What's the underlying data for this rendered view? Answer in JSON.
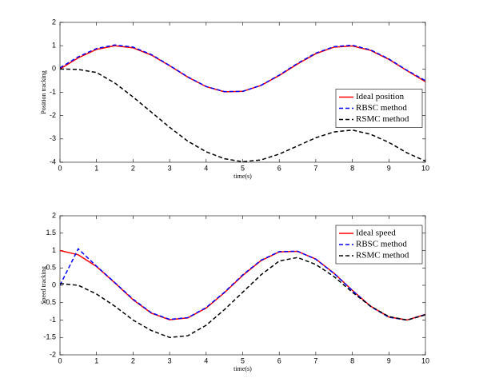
{
  "chart_data": [
    {
      "type": "line",
      "ylabel": "Position tracking",
      "xlabel": "time(s)",
      "x": [
        0,
        0.5,
        1,
        1.5,
        2,
        2.5,
        3,
        3.5,
        4,
        4.5,
        5,
        5.5,
        6,
        6.5,
        7,
        7.5,
        8,
        8.5,
        9,
        9.5,
        10
      ],
      "xlim": [
        0,
        10
      ],
      "xticks": [
        0,
        1,
        2,
        3,
        4,
        5,
        6,
        7,
        8,
        9,
        10
      ],
      "ylim": [
        -4,
        2
      ],
      "yticks": [
        -4,
        -3,
        -2,
        -1,
        0,
        1,
        2
      ],
      "legend": "east",
      "series": [
        {
          "name": "Ideal position",
          "color": "#ff0000",
          "dash": false,
          "values": [
            0,
            0.479,
            0.841,
            0.997,
            0.909,
            0.598,
            0.141,
            -0.351,
            -0.757,
            -0.978,
            -0.959,
            -0.706,
            -0.279,
            0.215,
            0.657,
            0.938,
            0.989,
            0.798,
            0.412,
            -0.075,
            -0.544
          ]
        },
        {
          "name": "RBSC method",
          "color": "#0000ff",
          "dash": true,
          "values": [
            0.05,
            0.52,
            0.88,
            1.03,
            0.94,
            0.62,
            0.15,
            -0.34,
            -0.75,
            -0.97,
            -0.96,
            -0.7,
            -0.26,
            0.24,
            0.68,
            0.96,
            1.02,
            0.82,
            0.43,
            -0.06,
            -0.5
          ]
        },
        {
          "name": "RSMC method",
          "color": "#000000",
          "dash": true,
          "values": [
            0,
            -0.02,
            -0.15,
            -0.6,
            -1.2,
            -1.85,
            -2.5,
            -3.1,
            -3.55,
            -3.85,
            -3.98,
            -3.9,
            -3.65,
            -3.3,
            -2.95,
            -2.7,
            -2.62,
            -2.8,
            -3.15,
            -3.6,
            -3.95
          ]
        }
      ]
    },
    {
      "type": "line",
      "ylabel": "Speed tracking",
      "xlabel": "time(s)",
      "x": [
        0,
        0.5,
        1,
        1.5,
        2,
        2.5,
        3,
        3.5,
        4,
        4.5,
        5,
        5.5,
        6,
        6.5,
        7,
        7.5,
        8,
        8.5,
        9,
        9.5,
        10
      ],
      "xlim": [
        0,
        10
      ],
      "xticks": [
        0,
        1,
        2,
        3,
        4,
        5,
        6,
        7,
        8,
        9,
        10
      ],
      "ylim": [
        -2,
        2
      ],
      "yticks": [
        -2,
        -1.5,
        -1,
        -0.5,
        0,
        0.5,
        1,
        1.5,
        2
      ],
      "legend": "northeast",
      "series": [
        {
          "name": "Ideal speed",
          "color": "#ff0000",
          "dash": false,
          "values": [
            1,
            0.878,
            0.54,
            0.071,
            -0.416,
            -0.801,
            -0.99,
            -0.936,
            -0.654,
            -0.211,
            0.284,
            0.709,
            0.96,
            0.977,
            0.754,
            0.347,
            -0.146,
            -0.602,
            -0.911,
            -0.997,
            -0.839
          ]
        },
        {
          "name": "RBSC method",
          "color": "#0000ff",
          "dash": true,
          "values": [
            0,
            1.05,
            0.55,
            0.08,
            -0.4,
            -0.79,
            -0.98,
            -0.93,
            -0.64,
            -0.2,
            0.3,
            0.72,
            0.97,
            0.98,
            0.75,
            0.34,
            -0.15,
            -0.61,
            -0.92,
            -1.0,
            -0.84
          ]
        },
        {
          "name": "RSMC method",
          "color": "#000000",
          "dash": true,
          "values": [
            0.05,
            0,
            -0.25,
            -0.6,
            -1,
            -1.3,
            -1.5,
            -1.45,
            -1.15,
            -0.7,
            -0.2,
            0.3,
            0.7,
            0.8,
            0.6,
            0.25,
            -0.2,
            -0.6,
            -0.9,
            -1,
            -0.85
          ]
        }
      ]
    }
  ]
}
